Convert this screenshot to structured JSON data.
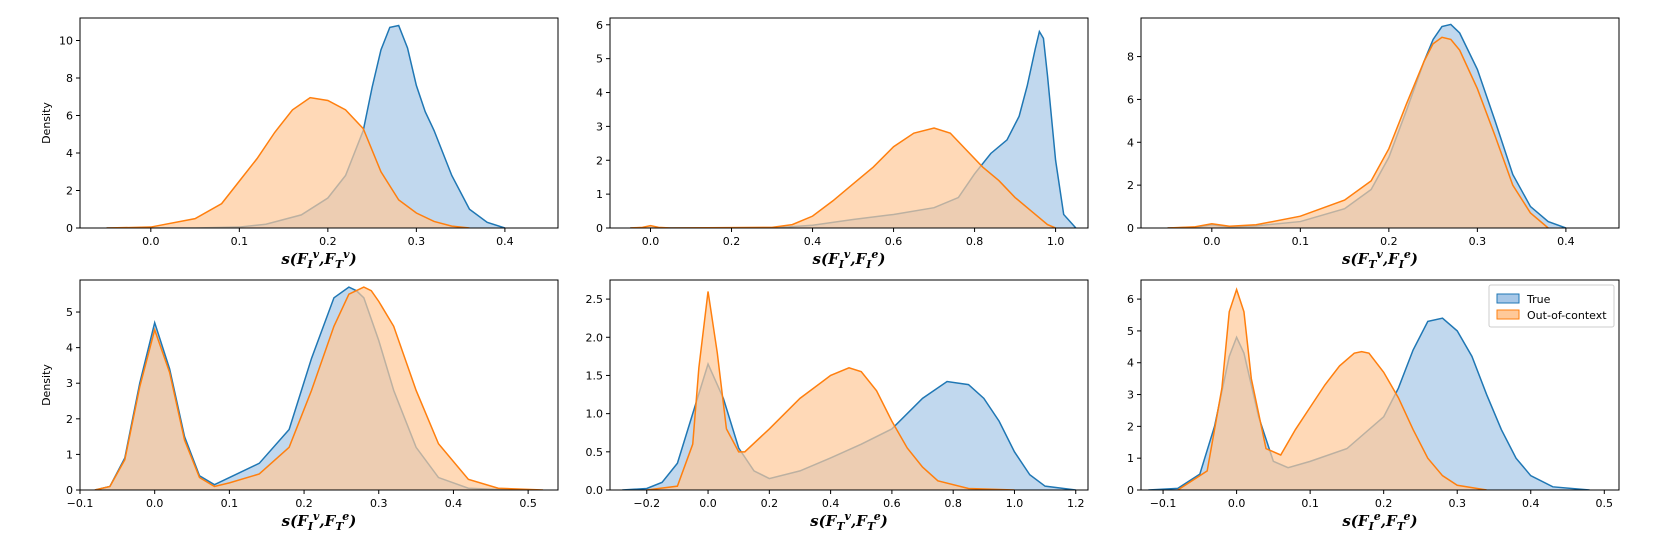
{
  "colors": {
    "true": "#1f77b4",
    "ooc": "#ff7f0e",
    "true_fill": "#a7c7e7",
    "ooc_fill": "#ffc999"
  },
  "legend": {
    "true_label": "True",
    "ooc_label": "Out-of-context",
    "placement": "upper-right of last panel"
  },
  "chart_data": [
    {
      "type": "area",
      "xlabel": {
        "base": "s(F",
        "s1": "I",
        "p1": "v",
        "mid": ",F",
        "s2": "T",
        "p2": "v",
        "end": ")"
      },
      "ylabel": "Density",
      "xlim": [
        -0.08,
        0.46
      ],
      "ylim": [
        0,
        11.2
      ],
      "xticks": [
        0.0,
        0.1,
        0.2,
        0.3,
        0.4
      ],
      "xtick_labels": [
        "0.0",
        "0.1",
        "0.2",
        "0.3",
        "0.4"
      ],
      "yticks": [
        0,
        2,
        4,
        6,
        8,
        10
      ],
      "ytick_labels": [
        "0",
        "2",
        "4",
        "6",
        "8",
        "10"
      ],
      "series": [
        {
          "key": "true",
          "x": [
            -0.05,
            0.05,
            0.1,
            0.13,
            0.17,
            0.2,
            0.22,
            0.24,
            0.25,
            0.26,
            0.27,
            0.28,
            0.29,
            0.3,
            0.31,
            0.32,
            0.34,
            0.36,
            0.38,
            0.4
          ],
          "y": [
            0,
            0,
            0.05,
            0.2,
            0.7,
            1.6,
            2.8,
            5.2,
            7.5,
            9.5,
            10.7,
            10.8,
            9.6,
            7.6,
            6.2,
            5.2,
            2.8,
            1.0,
            0.3,
            0
          ]
        },
        {
          "key": "ooc",
          "x": [
            -0.05,
            0.0,
            0.05,
            0.08,
            0.1,
            0.12,
            0.14,
            0.16,
            0.18,
            0.2,
            0.22,
            0.24,
            0.26,
            0.28,
            0.3,
            0.32,
            0.34,
            0.36
          ],
          "y": [
            0,
            0.05,
            0.5,
            1.3,
            2.5,
            3.7,
            5.1,
            6.3,
            6.95,
            6.8,
            6.3,
            5.3,
            3.0,
            1.5,
            0.8,
            0.35,
            0.1,
            0
          ]
        }
      ]
    },
    {
      "type": "area",
      "xlabel": {
        "base": "s(F",
        "s1": "I",
        "p1": "v",
        "mid": ",F",
        "s2": "I",
        "p2": "e",
        "end": ")"
      },
      "ylabel": "",
      "xlim": [
        -0.1,
        1.08
      ],
      "ylim": [
        0,
        6.2
      ],
      "xticks": [
        0.0,
        0.2,
        0.4,
        0.6,
        0.8,
        1.0
      ],
      "xtick_labels": [
        "0.0",
        "0.2",
        "0.4",
        "0.6",
        "0.8",
        "1.0"
      ],
      "yticks": [
        0,
        1,
        2,
        3,
        4,
        5,
        6
      ],
      "ytick_labels": [
        "0",
        "1",
        "2",
        "3",
        "4",
        "5",
        "6"
      ],
      "series": [
        {
          "key": "true",
          "x": [
            -0.05,
            0.3,
            0.4,
            0.5,
            0.6,
            0.7,
            0.76,
            0.8,
            0.84,
            0.88,
            0.91,
            0.93,
            0.95,
            0.96,
            0.97,
            0.98,
            1.0,
            1.02,
            1.05
          ],
          "y": [
            0,
            0,
            0.08,
            0.25,
            0.4,
            0.6,
            0.9,
            1.6,
            2.2,
            2.6,
            3.3,
            4.2,
            5.3,
            5.8,
            5.6,
            4.5,
            2.0,
            0.4,
            0
          ]
        },
        {
          "key": "ooc",
          "x": [
            -0.05,
            -0.02,
            0.0,
            0.02,
            0.05,
            0.3,
            0.35,
            0.4,
            0.45,
            0.5,
            0.55,
            0.6,
            0.65,
            0.7,
            0.74,
            0.78,
            0.82,
            0.86,
            0.9,
            0.94,
            0.98,
            1.0
          ],
          "y": [
            0,
            0.02,
            0.07,
            0.02,
            0,
            0.02,
            0.1,
            0.35,
            0.8,
            1.3,
            1.8,
            2.4,
            2.8,
            2.95,
            2.8,
            2.3,
            1.8,
            1.4,
            0.9,
            0.5,
            0.1,
            0
          ]
        }
      ]
    },
    {
      "type": "area",
      "xlabel": {
        "base": "s(F",
        "s1": "T",
        "p1": "v",
        "mid": ",F",
        "s2": "I",
        "p2": "e",
        "end": ")"
      },
      "ylabel": "",
      "xlim": [
        -0.08,
        0.46
      ],
      "ylim": [
        0,
        9.8
      ],
      "xticks": [
        0.0,
        0.1,
        0.2,
        0.3,
        0.4
      ],
      "xtick_labels": [
        "0.0",
        "0.1",
        "0.2",
        "0.3",
        "0.4"
      ],
      "yticks": [
        0,
        2,
        4,
        6,
        8
      ],
      "ytick_labels": [
        "0",
        "2",
        "4",
        "6",
        "8"
      ],
      "series": [
        {
          "key": "true",
          "x": [
            -0.05,
            -0.02,
            0.0,
            0.02,
            0.05,
            0.1,
            0.15,
            0.18,
            0.2,
            0.22,
            0.24,
            0.25,
            0.26,
            0.27,
            0.28,
            0.3,
            0.32,
            0.34,
            0.36,
            0.38,
            0.4
          ],
          "y": [
            0,
            0.03,
            0.15,
            0.05,
            0.1,
            0.3,
            0.9,
            1.8,
            3.3,
            5.5,
            7.8,
            8.8,
            9.4,
            9.5,
            9.1,
            7.4,
            5.0,
            2.5,
            1.0,
            0.3,
            0
          ]
        },
        {
          "key": "ooc",
          "x": [
            -0.05,
            -0.02,
            0.0,
            0.02,
            0.05,
            0.1,
            0.15,
            0.18,
            0.2,
            0.22,
            0.24,
            0.25,
            0.26,
            0.27,
            0.28,
            0.3,
            0.32,
            0.34,
            0.36,
            0.38
          ],
          "y": [
            0,
            0.05,
            0.2,
            0.08,
            0.15,
            0.55,
            1.3,
            2.2,
            3.7,
            5.8,
            7.8,
            8.6,
            8.9,
            8.8,
            8.3,
            6.5,
            4.3,
            2.0,
            0.7,
            0
          ]
        }
      ]
    },
    {
      "type": "area",
      "xlabel": {
        "base": "s(F",
        "s1": "I",
        "p1": "v",
        "mid": ",F",
        "s2": "T",
        "p2": "e",
        "end": ")"
      },
      "ylabel": "Density",
      "xlim": [
        -0.1,
        0.54
      ],
      "ylim": [
        0,
        5.9
      ],
      "xticks": [
        -0.1,
        0.0,
        0.1,
        0.2,
        0.3,
        0.4,
        0.5
      ],
      "xtick_labels": [
        "−0.1",
        "0.0",
        "0.1",
        "0.2",
        "0.3",
        "0.4",
        "0.5"
      ],
      "yticks": [
        0,
        1,
        2,
        3,
        4,
        5
      ],
      "ytick_labels": [
        "0",
        "1",
        "2",
        "3",
        "4",
        "5"
      ],
      "series": [
        {
          "key": "true",
          "x": [
            -0.08,
            -0.06,
            -0.04,
            -0.02,
            0.0,
            0.02,
            0.04,
            0.06,
            0.08,
            0.1,
            0.14,
            0.18,
            0.21,
            0.24,
            0.26,
            0.27,
            0.28,
            0.3,
            0.32,
            0.35,
            0.38,
            0.42,
            0.48
          ],
          "y": [
            0,
            0.1,
            0.9,
            3.0,
            4.7,
            3.4,
            1.5,
            0.4,
            0.15,
            0.35,
            0.75,
            1.7,
            3.7,
            5.4,
            5.7,
            5.6,
            5.4,
            4.2,
            2.8,
            1.2,
            0.35,
            0.05,
            0
          ]
        },
        {
          "key": "ooc",
          "x": [
            -0.08,
            -0.06,
            -0.04,
            -0.02,
            0.0,
            0.02,
            0.04,
            0.06,
            0.08,
            0.1,
            0.14,
            0.18,
            0.21,
            0.24,
            0.26,
            0.28,
            0.29,
            0.3,
            0.32,
            0.35,
            0.38,
            0.42,
            0.46,
            0.52
          ],
          "y": [
            0,
            0.1,
            0.85,
            2.9,
            4.5,
            3.3,
            1.4,
            0.35,
            0.1,
            0.2,
            0.45,
            1.2,
            2.8,
            4.6,
            5.5,
            5.7,
            5.6,
            5.3,
            4.6,
            2.8,
            1.3,
            0.3,
            0.05,
            0
          ]
        }
      ]
    },
    {
      "type": "area",
      "xlabel": {
        "base": "s(F",
        "s1": "T",
        "p1": "v",
        "mid": ",F",
        "s2": "T",
        "p2": "e",
        "end": ")"
      },
      "ylabel": "",
      "xlim": [
        -0.32,
        1.24
      ],
      "ylim": [
        0,
        2.75
      ],
      "xticks": [
        -0.2,
        0.0,
        0.2,
        0.4,
        0.6,
        0.8,
        1.0,
        1.2
      ],
      "xtick_labels": [
        "−0.2",
        "0.0",
        "0.2",
        "0.4",
        "0.6",
        "0.8",
        "1.0",
        "1.2"
      ],
      "yticks": [
        0,
        0.5,
        1.0,
        1.5,
        2.0,
        2.5
      ],
      "ytick_labels": [
        "0.0",
        "0.5",
        "1.0",
        "1.5",
        "2.0",
        "2.5"
      ],
      "series": [
        {
          "key": "true",
          "x": [
            -0.28,
            -0.2,
            -0.15,
            -0.1,
            -0.05,
            0.0,
            0.05,
            0.1,
            0.15,
            0.2,
            0.3,
            0.4,
            0.5,
            0.6,
            0.7,
            0.78,
            0.85,
            0.9,
            0.95,
            1.0,
            1.05,
            1.1,
            1.2
          ],
          "y": [
            0,
            0.02,
            0.1,
            0.35,
            1.0,
            1.65,
            1.2,
            0.55,
            0.25,
            0.15,
            0.25,
            0.42,
            0.6,
            0.8,
            1.2,
            1.42,
            1.38,
            1.2,
            0.9,
            0.5,
            0.2,
            0.05,
            0
          ]
        },
        {
          "key": "ooc",
          "x": [
            -0.2,
            -0.1,
            -0.05,
            -0.03,
            0.0,
            0.03,
            0.06,
            0.1,
            0.12,
            0.2,
            0.3,
            0.4,
            0.46,
            0.5,
            0.55,
            0.6,
            0.65,
            0.7,
            0.75,
            0.85,
            1.0
          ],
          "y": [
            0,
            0.05,
            0.6,
            1.6,
            2.6,
            1.8,
            0.8,
            0.5,
            0.5,
            0.8,
            1.2,
            1.5,
            1.6,
            1.55,
            1.3,
            0.9,
            0.55,
            0.3,
            0.12,
            0.02,
            0
          ]
        }
      ]
    },
    {
      "type": "area",
      "xlabel": {
        "base": "s(F",
        "s1": "I",
        "p1": "e",
        "mid": ",F",
        "s2": "T",
        "p2": "e",
        "end": ")"
      },
      "ylabel": "",
      "xlim": [
        -0.13,
        0.52
      ],
      "ylim": [
        0,
        6.6
      ],
      "xticks": [
        -0.1,
        0.0,
        0.1,
        0.2,
        0.3,
        0.4,
        0.5
      ],
      "xtick_labels": [
        "−0.1",
        "0.0",
        "0.1",
        "0.2",
        "0.3",
        "0.4",
        "0.5"
      ],
      "yticks": [
        0,
        1,
        2,
        3,
        4,
        5,
        6
      ],
      "ytick_labels": [
        "0",
        "1",
        "2",
        "3",
        "4",
        "5",
        "6"
      ],
      "series": [
        {
          "key": "true",
          "x": [
            -0.12,
            -0.08,
            -0.05,
            -0.03,
            -0.01,
            0.0,
            0.01,
            0.03,
            0.05,
            0.07,
            0.1,
            0.15,
            0.2,
            0.22,
            0.24,
            0.26,
            0.28,
            0.3,
            0.32,
            0.34,
            0.36,
            0.38,
            0.4,
            0.43,
            0.48
          ],
          "y": [
            0,
            0.05,
            0.5,
            2.0,
            4.2,
            4.8,
            4.3,
            2.3,
            0.9,
            0.7,
            0.9,
            1.3,
            2.3,
            3.2,
            4.4,
            5.3,
            5.4,
            5.0,
            4.2,
            3.0,
            1.9,
            1.0,
            0.45,
            0.1,
            0
          ]
        },
        {
          "key": "ooc",
          "x": [
            -0.08,
            -0.04,
            -0.02,
            -0.01,
            0.0,
            0.01,
            0.02,
            0.04,
            0.06,
            0.08,
            0.1,
            0.12,
            0.14,
            0.16,
            0.17,
            0.18,
            0.2,
            0.22,
            0.24,
            0.26,
            0.28,
            0.3,
            0.34
          ],
          "y": [
            0,
            0.6,
            3.2,
            5.6,
            6.3,
            5.6,
            3.5,
            1.3,
            1.1,
            1.9,
            2.6,
            3.3,
            3.9,
            4.3,
            4.35,
            4.3,
            3.7,
            2.9,
            1.9,
            1.0,
            0.45,
            0.15,
            0
          ]
        }
      ]
    }
  ]
}
